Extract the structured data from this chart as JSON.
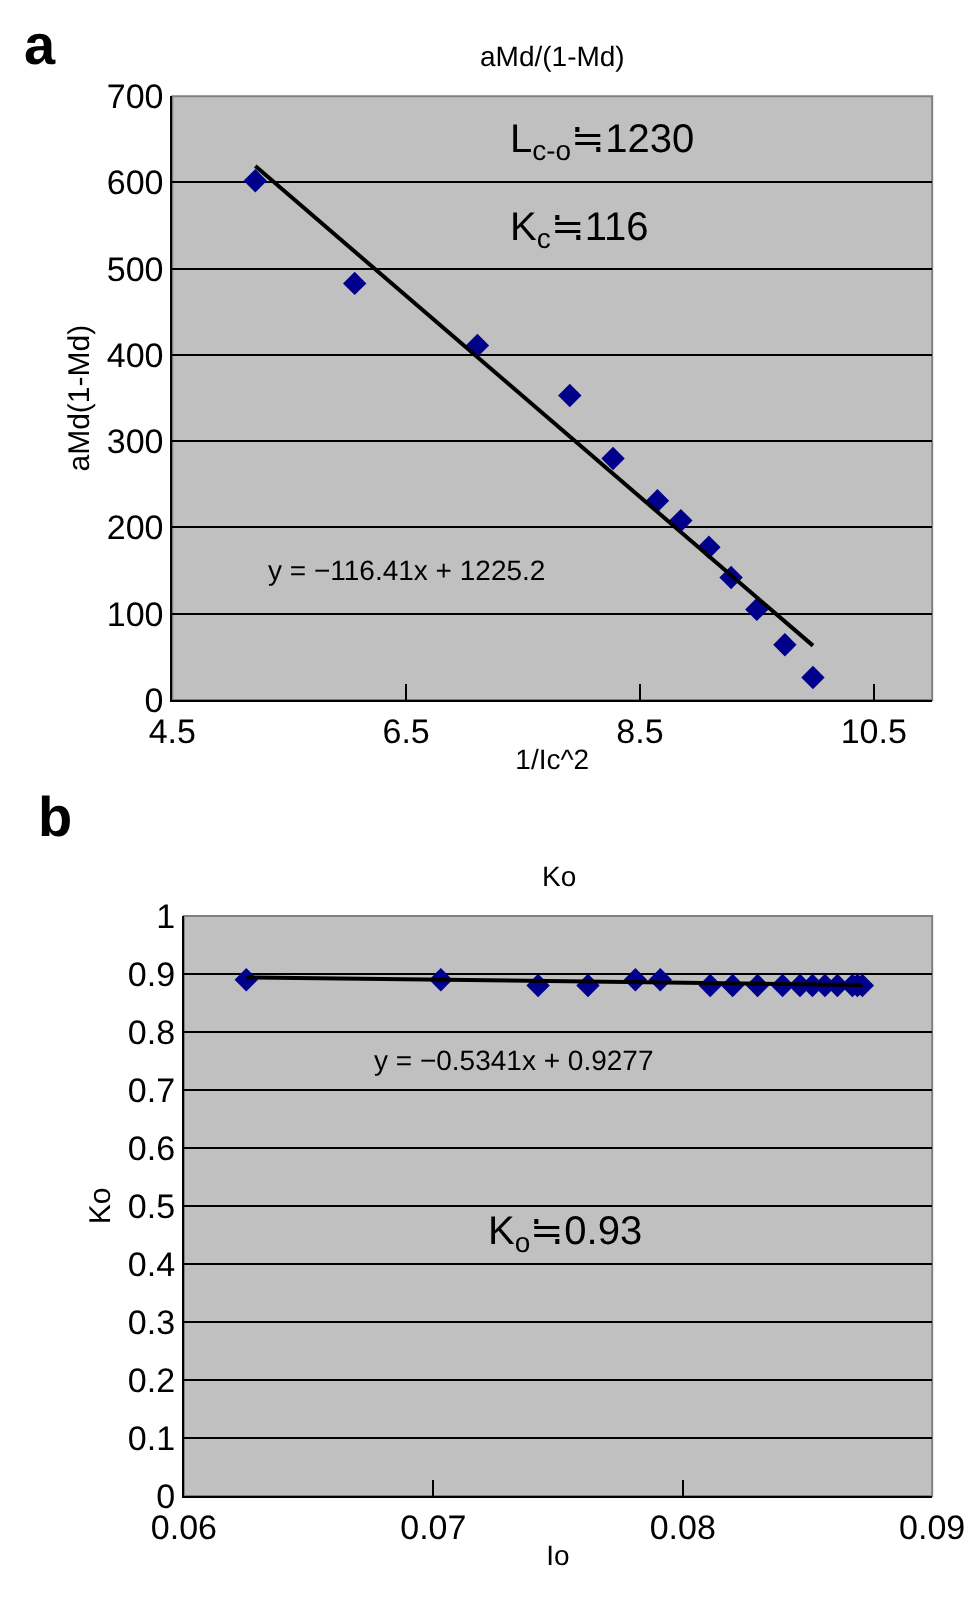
{
  "chart_data": [
    {
      "type": "scatter",
      "title": "aMd/(1-Md)",
      "xlabel": "1/Ic^2",
      "ylabel": "aMd(1-Md)",
      "xlim": [
        4.5,
        11
      ],
      "xticks": [
        4.5,
        6.5,
        8.5,
        10.5
      ],
      "ylim": [
        0,
        700
      ],
      "yticks": [
        0,
        100,
        200,
        300,
        400,
        500,
        600,
        700
      ],
      "grid": "y",
      "marker": "diamond",
      "series": [
        {
          "color": "#00008b",
          "x": [
            5.21,
            6.06,
            7.11,
            7.9,
            8.27,
            8.65,
            8.85,
            9.09,
            9.28,
            9.5,
            9.74,
            9.98
          ],
          "values": [
            602,
            483,
            411,
            353,
            280,
            231,
            208,
            177,
            142,
            105,
            64,
            26
          ]
        },
        {
          "type": "line",
          "color": "#000000",
          "marker": "none",
          "x": [
            5.21,
            9.98
          ],
          "values": [
            619,
            63
          ]
        }
      ],
      "annotations": [
        "a",
        "L$_{c-o}$≒1230",
        "K$_{c}$≒116",
        "y = −116.41x + 1225.2"
      ]
    },
    {
      "type": "scatter",
      "title": "Ko",
      "xlabel": "Io",
      "ylabel": "Ko",
      "xlim": [
        0.06,
        0.09
      ],
      "xticks": [
        0.06,
        0.07,
        0.08,
        0.09
      ],
      "ylim": [
        0,
        1
      ],
      "yticks": [
        0,
        0.1,
        0.2,
        0.3,
        0.4,
        0.5,
        0.6,
        0.7,
        0.8,
        0.9,
        1
      ],
      "grid": "y",
      "marker": "diamond",
      "series": [
        {
          "color": "#00008b",
          "x": [
            0.0625,
            0.0703,
            0.0742,
            0.0762,
            0.0781,
            0.0791,
            0.0811,
            0.082,
            0.083,
            0.084,
            0.0847,
            0.0852,
            0.0857,
            0.0862,
            0.0868,
            0.087,
            0.0872
          ],
          "values": [
            0.89,
            0.89,
            0.88,
            0.88,
            0.89,
            0.89,
            0.88,
            0.88,
            0.88,
            0.88,
            0.88,
            0.88,
            0.88,
            0.88,
            0.88,
            0.88,
            0.88
          ]
        },
        {
          "type": "line",
          "color": "#000000",
          "marker": "none",
          "x": [
            0.0625,
            0.0872
          ],
          "values": [
            0.894,
            0.881
          ]
        }
      ],
      "annotations": [
        "b",
        "y = −0.5341x + 0.9277",
        "K$_{o}$≒0.93"
      ]
    }
  ]
}
